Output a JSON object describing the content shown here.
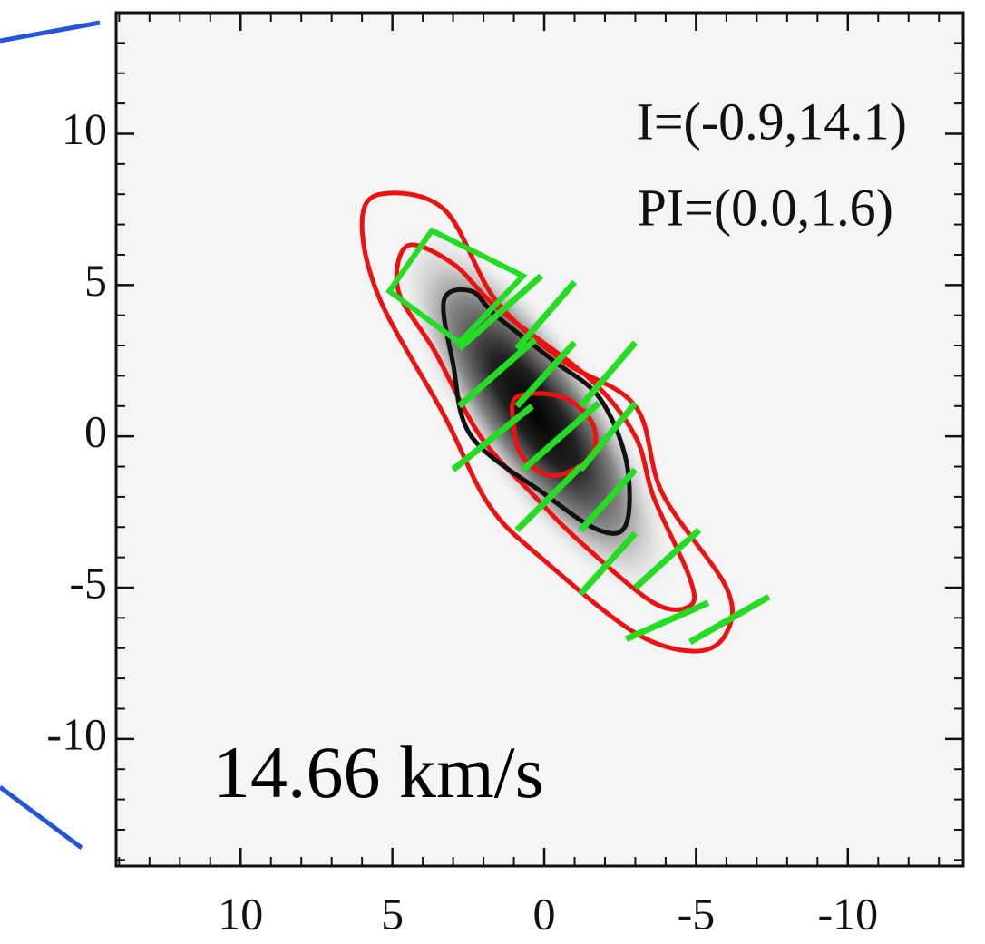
{
  "chart_data": {
    "type": "contour",
    "annotations": [
      "I=(-0.9,14.1)",
      "PI=(0.0,1.6)"
    ],
    "label": "14.66 km/s",
    "xlim": [
      14.1,
      -13.8
    ],
    "ylim": [
      -14.2,
      14.0
    ],
    "xticks": [
      10,
      5,
      0,
      -5,
      -10
    ],
    "yticks": [
      10,
      5,
      0,
      -5,
      -10
    ],
    "minor_tick_step": 1,
    "contours": [
      {
        "color": "#ee1111",
        "points": [
          [
            5.4,
            8
          ],
          [
            3.3,
            7.5
          ],
          [
            1.6,
            4.5
          ],
          [
            -0.6,
            2.5
          ],
          [
            -3,
            1
          ],
          [
            -3.9,
            -1.9
          ],
          [
            -6,
            -5
          ],
          [
            -6,
            -6.5
          ],
          [
            -5,
            -7.1
          ],
          [
            -3,
            -6.5
          ],
          [
            0,
            -4.1
          ],
          [
            1.8,
            -2.3
          ],
          [
            3.3,
            0.7
          ],
          [
            5.4,
            4.5
          ],
          [
            6,
            7
          ]
        ]
      },
      {
        "color": "#ee1111",
        "points": [
          [
            4.5,
            6.3
          ],
          [
            3,
            5.7
          ],
          [
            1.5,
            4.2
          ],
          [
            -1.5,
            1.9
          ],
          [
            -3,
            0
          ],
          [
            -3.6,
            -2
          ],
          [
            -4.8,
            -4.7
          ],
          [
            -4.8,
            -5.6
          ],
          [
            -3.6,
            -5.5
          ],
          [
            -1.2,
            -3.5
          ],
          [
            0.3,
            -2
          ],
          [
            2.1,
            0
          ],
          [
            3.6,
            2.8
          ],
          [
            4.8,
            4.8
          ]
        ]
      },
      {
        "color": "#111111",
        "points": [
          [
            3.3,
            4.5
          ],
          [
            2.4,
            4.8
          ],
          [
            1.6,
            4
          ],
          [
            -0.3,
            2.5
          ],
          [
            -1.8,
            1.3
          ],
          [
            -2.7,
            -0.8
          ],
          [
            -2.7,
            -2.9
          ],
          [
            -1.8,
            -3.1
          ],
          [
            0,
            -1.9
          ],
          [
            2.4,
            0
          ],
          [
            3,
            2.4
          ]
        ]
      },
      {
        "color": "#ee1111",
        "points": [
          [
            0.9,
            1.3
          ],
          [
            -0.6,
            1.3
          ],
          [
            -1.6,
            0.4
          ],
          [
            -1.5,
            -0.7
          ],
          [
            -0.3,
            -1.3
          ],
          [
            0.7,
            -0.7
          ],
          [
            1,
            0.3
          ]
        ]
      }
    ],
    "vector_color": "#22dd22",
    "vectors": [
      [
        2.8,
        2.9,
        0.1,
        5.3
      ],
      [
        0.9,
        2.9,
        -1.0,
        5.1
      ],
      [
        2.8,
        1.0,
        0.3,
        3.2
      ],
      [
        0.9,
        1.0,
        -1.0,
        3.1
      ],
      [
        -1.2,
        1.0,
        -3.0,
        3.1
      ],
      [
        3.0,
        -1.1,
        0.4,
        1.0
      ],
      [
        0.7,
        -1.1,
        -1.8,
        1.1
      ],
      [
        -1.2,
        -1.1,
        -3.0,
        1.1
      ],
      [
        0.9,
        -3.1,
        -1.2,
        -1.0
      ],
      [
        -1.2,
        -3.1,
        -3.0,
        -1.1
      ],
      [
        -1.2,
        -5.2,
        -3.0,
        -3.2
      ],
      [
        -3.0,
        -5.0,
        -5.1,
        -3.1
      ],
      [
        -2.7,
        -6.7,
        -5.4,
        -5.5
      ],
      [
        -4.8,
        -6.8,
        -7.4,
        -5.3
      ]
    ],
    "box": [
      [
        5.1,
        4.8
      ],
      [
        3.7,
        6.8
      ],
      [
        0.7,
        5.3
      ],
      [
        2.8,
        3.1
      ]
    ]
  }
}
